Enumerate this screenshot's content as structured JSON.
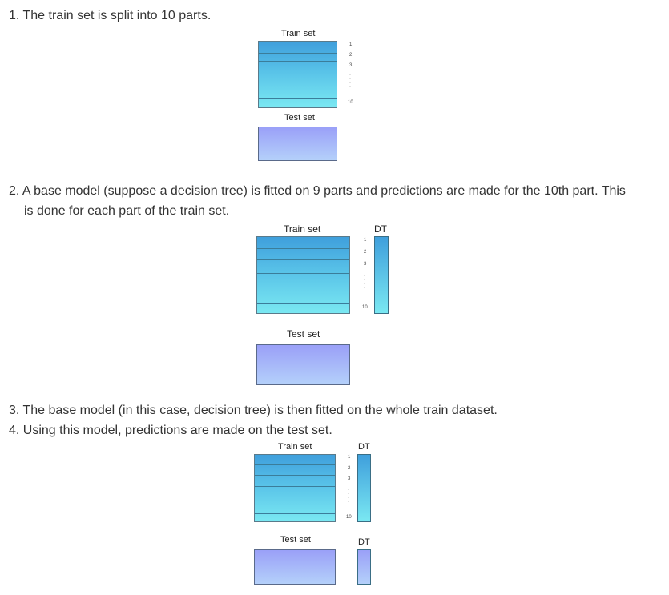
{
  "steps": [
    "1. The train set is split into 10 parts.",
    "2. A base model (suppose a decision tree) is fitted on 9 parts and predictions are made for the 10th part. This",
    "is done for each part of the train set.",
    "3. The base model (in this case, decision tree) is then fitted on the whole train dataset.",
    "4. Using this model, predictions are made on the test set."
  ],
  "diagram": {
    "train_label": "Train set",
    "test_label": "Test set",
    "dt_label": "DT",
    "part_numbers": [
      "1",
      "2",
      "3",
      "10"
    ]
  }
}
